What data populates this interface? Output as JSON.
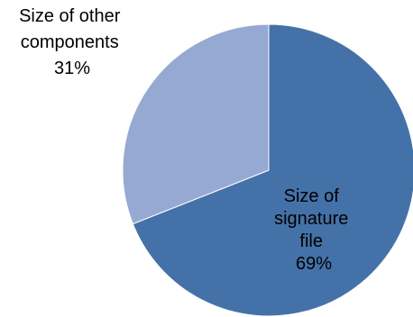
{
  "colors": {
    "background": "#ffffff",
    "slice_edge": "#ffffff"
  },
  "chart_data": {
    "type": "pie",
    "title": "",
    "slices": [
      {
        "label_lines": [
          "Size of",
          "signature",
          "file"
        ],
        "value": 69,
        "value_label": "69%",
        "color": "#4472a8"
      },
      {
        "label_lines": [
          "Size of other",
          "components"
        ],
        "value": 31,
        "value_label": "31%",
        "color": "#96a9d2"
      }
    ],
    "start_angle_deg": 0,
    "direction": "clockwise",
    "legend": "none"
  }
}
